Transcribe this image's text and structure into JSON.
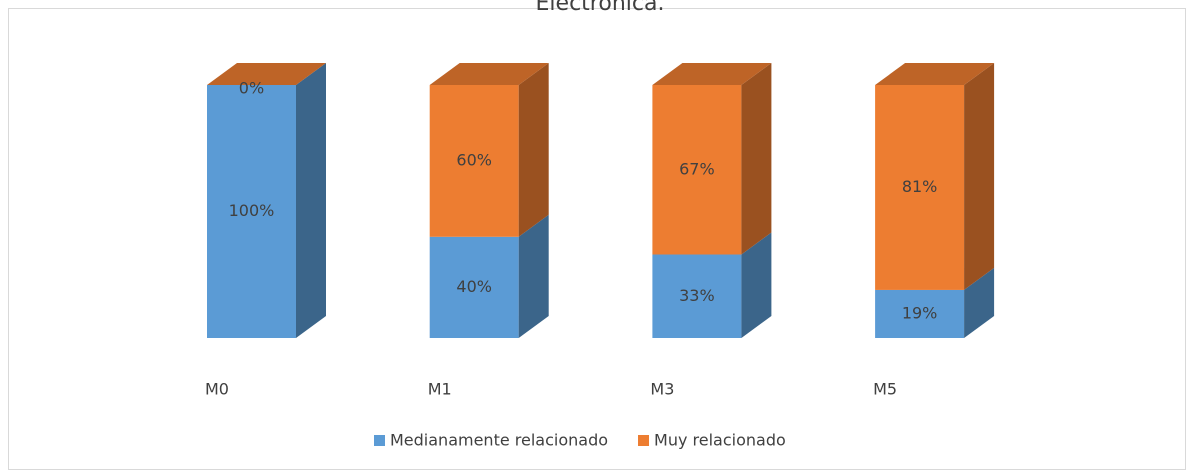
{
  "chart_data": {
    "type": "bar3d_stacked",
    "title": "Electrónica.",
    "categories": [
      "M0",
      "M1",
      "M3",
      "M5"
    ],
    "series": [
      {
        "name": "Medianamente relacionado",
        "color": "#5b9bd5",
        "values": [
          100,
          40,
          33,
          19
        ],
        "value_labels": [
          "100%",
          "40%",
          "33%",
          "19%"
        ]
      },
      {
        "name": "Muy relacionado",
        "color": "#ed7d31",
        "values": [
          0,
          60,
          67,
          81
        ],
        "value_labels": [
          "0%",
          "60%",
          "67%",
          "81%"
        ]
      }
    ]
  }
}
